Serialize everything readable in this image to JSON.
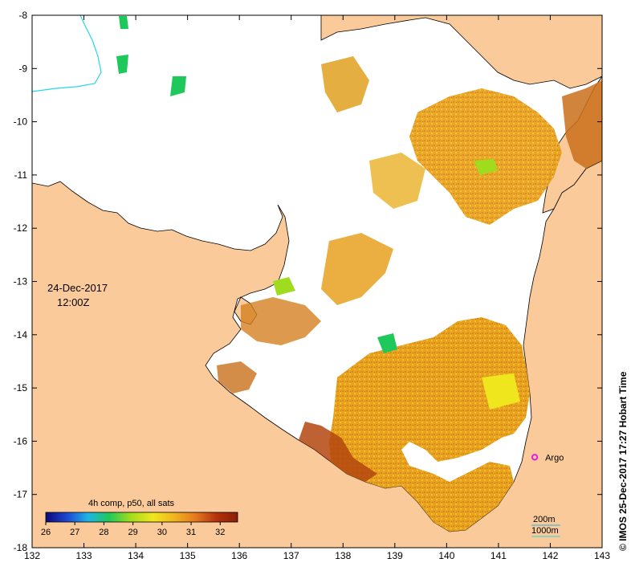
{
  "map": {
    "date": "24-Dec-2017",
    "time": "12:00Z",
    "credit": "© IMOS 25-Dec-2017 17:27 Hobart Time",
    "marker_label": "Argo",
    "marker_lon": 141.7,
    "marker_lat": -16.3,
    "isobath_200": "200m",
    "isobath_1000": "1000m",
    "land_color": "#FACA9B",
    "marker_color": "#E020E0",
    "isobath_color": "#26D6E6"
  },
  "axes": {
    "x_ticks": [
      "132",
      "133",
      "134",
      "135",
      "136",
      "137",
      "138",
      "139",
      "140",
      "141",
      "142",
      "143"
    ],
    "y_ticks": [
      "-8",
      "-9",
      "-10",
      "-11",
      "-12",
      "-13",
      "-14",
      "-15",
      "-16",
      "-17",
      "-18"
    ],
    "lon_range": [
      132,
      143
    ],
    "lat_range": [
      -18,
      -8
    ]
  },
  "colorbar": {
    "title": "4h comp, p50, all sats",
    "labels": [
      "26",
      "27",
      "28",
      "29",
      "30",
      "31",
      "32"
    ],
    "min": 26,
    "max": 32.6,
    "colors": [
      "#0A0A78",
      "#1E46D2",
      "#1EB4E6",
      "#1EC85A",
      "#A0DC1E",
      "#F0E61E",
      "#F0B41E",
      "#E6781E",
      "#B4320A",
      "#8C1E0A"
    ]
  }
}
